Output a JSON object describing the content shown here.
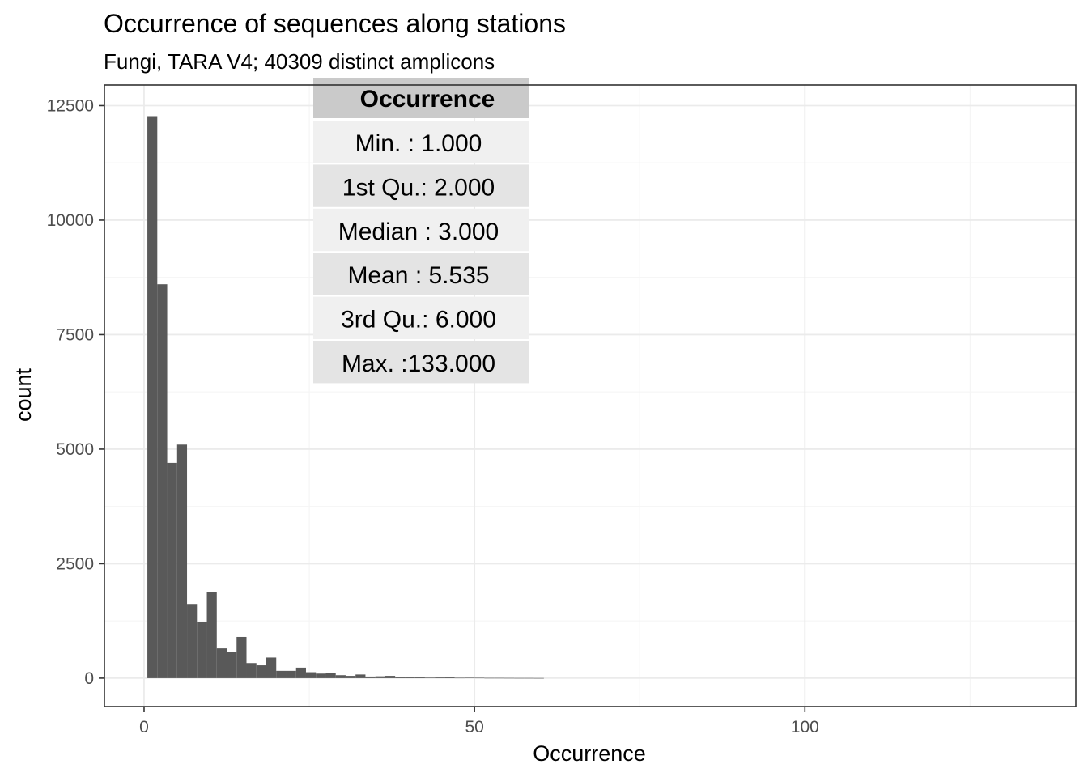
{
  "chart_data": {
    "type": "bar",
    "title": "Occurrence of sequences along stations",
    "subtitle": "Fungi, TARA V4; 40309 distinct amplicons",
    "xlabel": "Occurrence",
    "ylabel": "count",
    "xlim": [
      -6,
      141
    ],
    "ylim": [
      -620,
      12950
    ],
    "x_ticks": [
      0,
      50,
      100
    ],
    "x_tick_labels": [
      "0",
      "50",
      "100"
    ],
    "y_ticks": [
      0,
      2500,
      5000,
      7500,
      10000,
      12500
    ],
    "y_tick_labels": [
      "0",
      "2500",
      "5000",
      "7500",
      "10000",
      "12500"
    ],
    "grid": true,
    "bin_width": 1.5,
    "bins": [
      {
        "x": 1.25,
        "count": 12270
      },
      {
        "x": 2.75,
        "count": 8600
      },
      {
        "x": 4.25,
        "count": 4700
      },
      {
        "x": 5.75,
        "count": 5100
      },
      {
        "x": 7.25,
        "count": 1620
      },
      {
        "x": 8.75,
        "count": 1230
      },
      {
        "x": 10.25,
        "count": 1880
      },
      {
        "x": 11.75,
        "count": 650
      },
      {
        "x": 13.25,
        "count": 580
      },
      {
        "x": 14.75,
        "count": 900
      },
      {
        "x": 16.25,
        "count": 330
      },
      {
        "x": 17.75,
        "count": 280
      },
      {
        "x": 19.25,
        "count": 450
      },
      {
        "x": 20.75,
        "count": 160
      },
      {
        "x": 22.25,
        "count": 160
      },
      {
        "x": 23.75,
        "count": 230
      },
      {
        "x": 25.25,
        "count": 130
      },
      {
        "x": 26.75,
        "count": 100
      },
      {
        "x": 28.25,
        "count": 110
      },
      {
        "x": 29.75,
        "count": 65
      },
      {
        "x": 31.25,
        "count": 50
      },
      {
        "x": 32.75,
        "count": 80
      },
      {
        "x": 34.25,
        "count": 35
      },
      {
        "x": 35.75,
        "count": 40
      },
      {
        "x": 37.25,
        "count": 50
      },
      {
        "x": 38.75,
        "count": 25
      },
      {
        "x": 40.25,
        "count": 25
      },
      {
        "x": 41.75,
        "count": 30
      },
      {
        "x": 43.25,
        "count": 12
      },
      {
        "x": 44.75,
        "count": 15
      },
      {
        "x": 46.25,
        "count": 20
      },
      {
        "x": 47.75,
        "count": 8
      },
      {
        "x": 49.25,
        "count": 10
      },
      {
        "x": 50.75,
        "count": 8
      },
      {
        "x": 52.25,
        "count": 5
      },
      {
        "x": 53.75,
        "count": 5
      },
      {
        "x": 55.25,
        "count": 4
      },
      {
        "x": 56.75,
        "count": 3
      },
      {
        "x": 58.25,
        "count": 3
      },
      {
        "x": 59.75,
        "count": 2
      }
    ],
    "summary_table": {
      "header": "Occurrence",
      "rows": [
        "Min.   :  1.000",
        "1st Qu.:  2.000",
        "Median :  3.000",
        "Mean   :  5.535",
        "3rd Qu.:  6.000",
        "Max.   :133.000"
      ]
    },
    "colors": {
      "bar": "#595959",
      "grid_major": "#ebebeb",
      "grid_minor": "#f5f5f5",
      "panel_border": "#333333",
      "tick_text": "#4d4d4d",
      "table_header": "#cacaca",
      "table_row_odd": "#f0f0f0",
      "table_row_even": "#e4e4e4"
    }
  }
}
